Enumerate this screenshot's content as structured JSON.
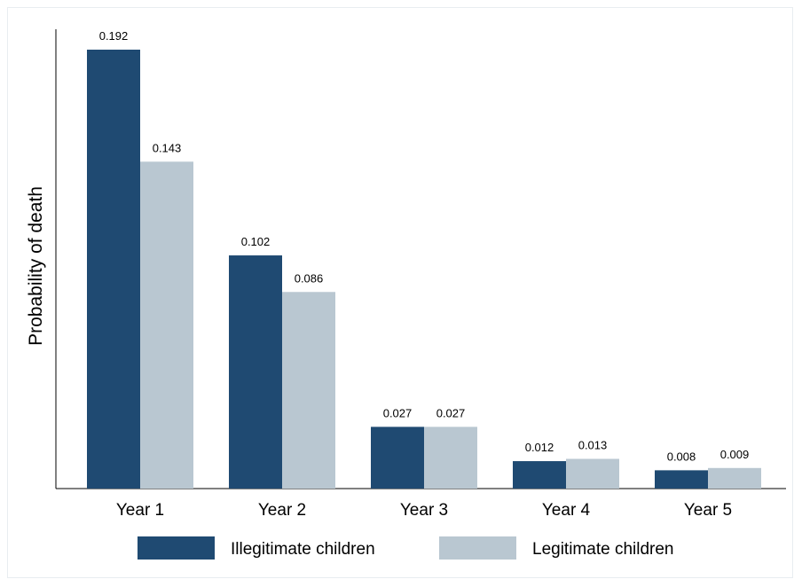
{
  "chart_data": {
    "type": "bar",
    "categories": [
      "Year 1",
      "Year 2",
      "Year 3",
      "Year 4",
      "Year 5"
    ],
    "series": [
      {
        "name": "Illegitimate children",
        "color": "#1f4a72",
        "values": [
          0.192,
          0.102,
          0.027,
          0.012,
          0.008
        ],
        "labels": [
          "0.192",
          "0.102",
          "0.027",
          "0.012",
          "0.008"
        ]
      },
      {
        "name": "Legitimate children",
        "color": "#b9c7d1",
        "values": [
          0.143,
          0.086,
          0.027,
          0.013,
          0.009
        ],
        "labels": [
          "0.143",
          "0.086",
          "0.027",
          "0.013",
          "0.009"
        ]
      }
    ],
    "title": "",
    "xlabel": "",
    "ylabel": "Probability of death",
    "ylim": [
      0,
      0.192
    ],
    "grid": false,
    "legend_position": "bottom"
  }
}
